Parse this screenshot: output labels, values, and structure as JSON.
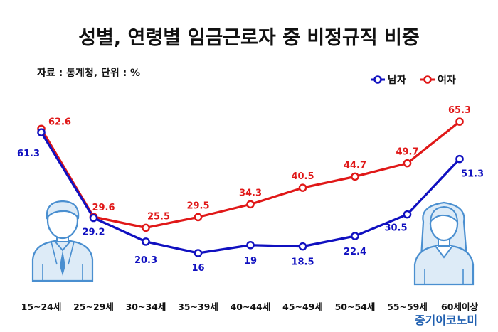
{
  "chart_data": {
    "type": "line",
    "title": "성별, 연령별 임금근로자 중 비정규직 비중",
    "subtitle": "자료 : 통계청, 단위 : %",
    "categories": [
      "15~24세",
      "25~29세",
      "30~34세",
      "35~39세",
      "40~44세",
      "45~49세",
      "50~54세",
      "55~59세",
      "60세이상"
    ],
    "series": [
      {
        "name": "남자",
        "color": "#1010c0",
        "values": [
          61.3,
          29.2,
          20.3,
          16,
          19,
          18.5,
          22.4,
          30.5,
          51.3
        ],
        "labels": [
          "61.3",
          "29.2",
          "20.3",
          "16",
          "19",
          "18.5",
          "22.4",
          "30.5",
          "51.3"
        ]
      },
      {
        "name": "여자",
        "color": "#e01818",
        "values": [
          62.6,
          29.6,
          25.5,
          29.5,
          34.3,
          40.5,
          44.7,
          49.7,
          65.3
        ],
        "labels": [
          "62.6",
          "29.6",
          "25.5",
          "29.5",
          "34.3",
          "40.5",
          "44.7",
          "49.7",
          "65.3"
        ]
      }
    ],
    "legend_position": "top-right",
    "grid": false
  },
  "brand": "중기이코노미",
  "brand_color": "#1f5fb0",
  "icons": [
    "male-worker-icon",
    "female-worker-icon"
  ]
}
